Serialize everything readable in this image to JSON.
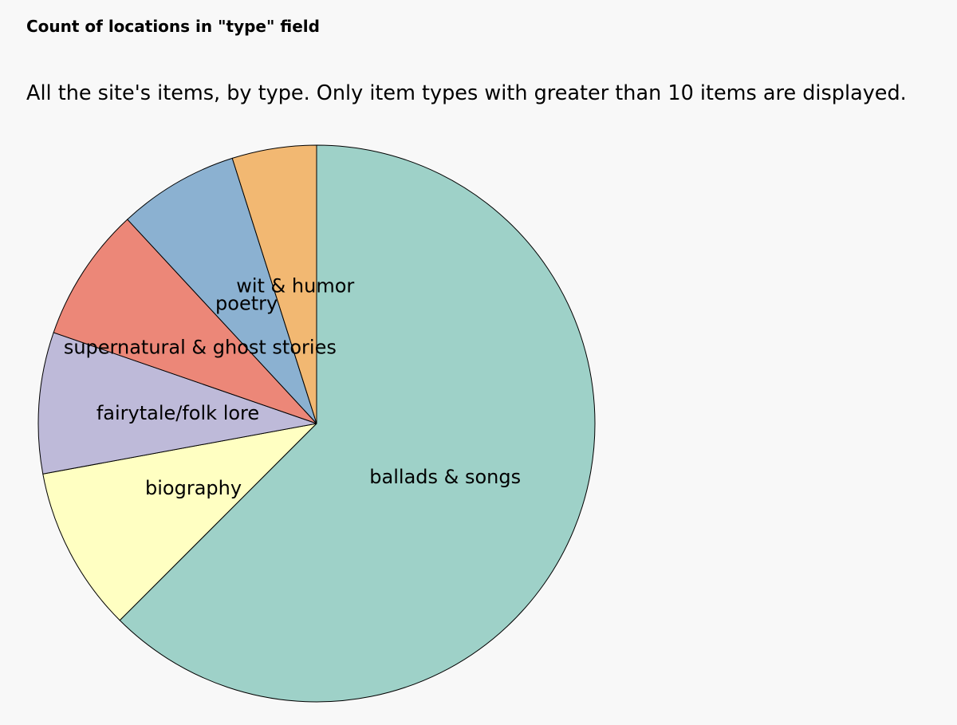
{
  "heading": "Count of locations in \"type\" field",
  "description": "All the site's items, by type. Only item types with greater than 10 items are displayed.",
  "chart_data": {
    "type": "pie",
    "title": "",
    "start_angle_deg": 0,
    "direction": "clockwise",
    "slices": [
      {
        "label": "ballads & songs",
        "value": 62.5,
        "color": "#9ed1c8"
      },
      {
        "label": "biography",
        "value": 9.6,
        "color": "#ffffc2"
      },
      {
        "label": "fairytale/folk lore",
        "value": 8.2,
        "color": "#bebad9"
      },
      {
        "label": "supernatural & ghost stories",
        "value": 7.8,
        "color": "#ec8778"
      },
      {
        "label": "poetry",
        "value": 7.0,
        "color": "#8bb1d1"
      },
      {
        "label": "wit & humor",
        "value": 4.9,
        "color": "#f2b872"
      }
    ]
  }
}
